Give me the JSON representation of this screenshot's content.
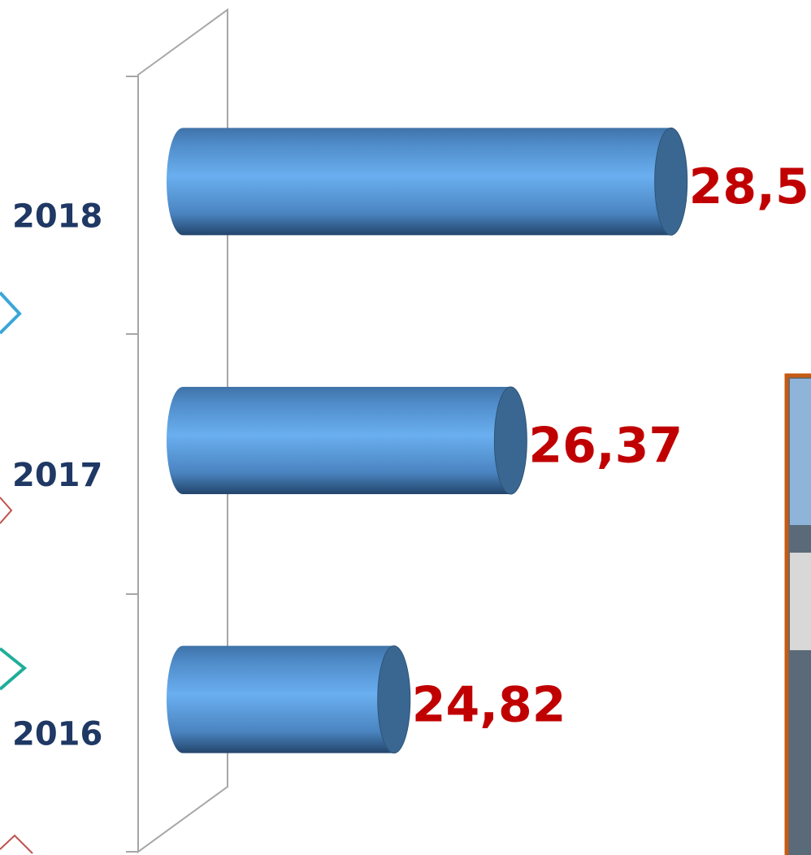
{
  "chart_data": {
    "type": "bar",
    "orientation": "horizontal",
    "categories": [
      "2018",
      "2017",
      "2016"
    ],
    "values": [
      28.5,
      26.37,
      24.82
    ],
    "value_labels": [
      "28,5",
      "26,37",
      "24,82"
    ],
    "color": "#5b9bd5",
    "xlim": [
      21.8,
      29
    ]
  }
}
